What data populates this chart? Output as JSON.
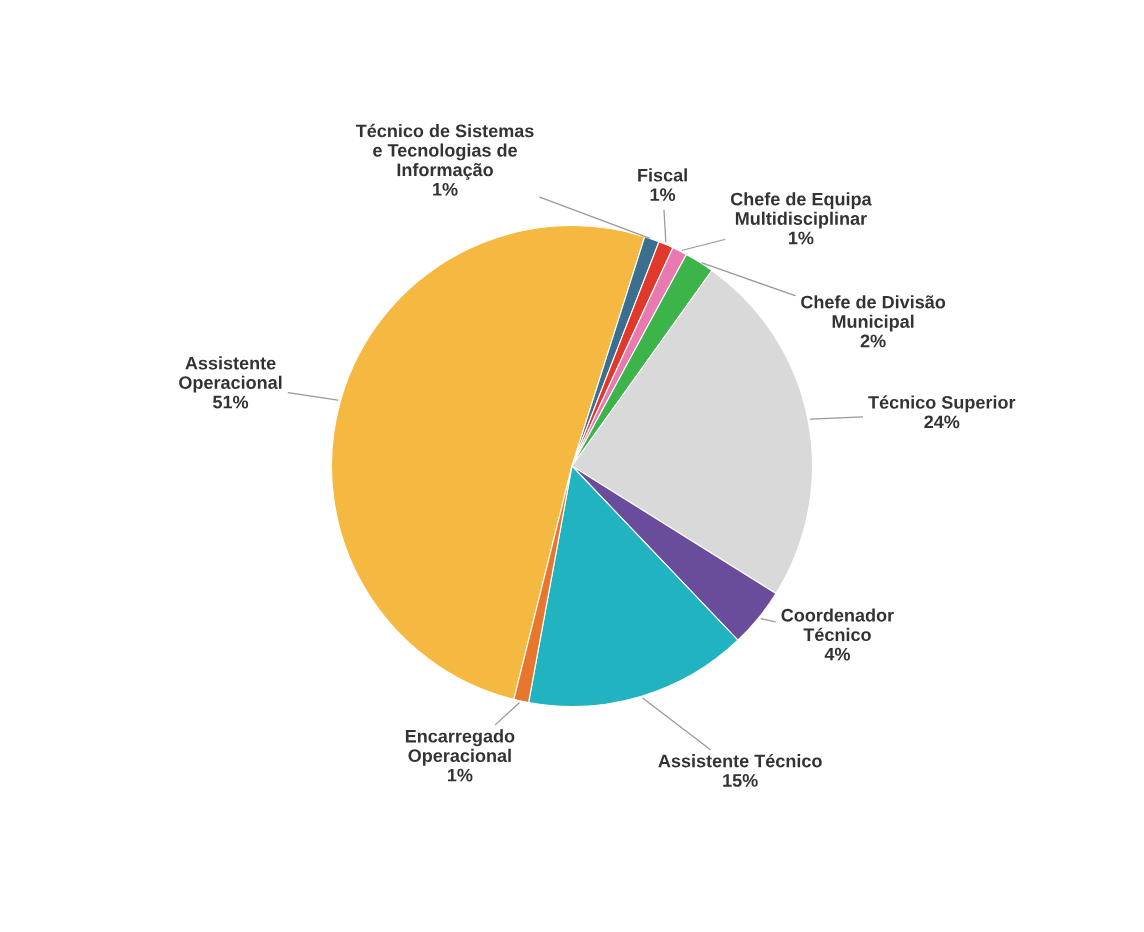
{
  "chart_data": {
    "type": "pie",
    "categories": [
      "Assistente\nOperacional",
      "Técnico de Sistemas\ne Tecnologias de\nInformação",
      "Fiscal",
      "Chefe de Equipa\nMultidisciplinar",
      "Chefe de Divisão\nMunicipal",
      "Técnico Superior",
      "Coordenador\nTécnico",
      "Assistente Técnico",
      "Encarregado\nOperacional"
    ],
    "values": [
      51,
      1,
      1,
      1,
      2,
      24,
      4,
      15,
      1
    ],
    "value_labels": [
      "51%",
      "1%",
      "1%",
      "1%",
      "2%",
      "24%",
      "4%",
      "15%",
      "1%"
    ],
    "colors": [
      "#f5b942",
      "#3a6f8f",
      "#e0392b",
      "#e87ab0",
      "#3cb44a",
      "#d9d9d9",
      "#6a4c9c",
      "#22b3c0",
      "#e8772e"
    ]
  }
}
